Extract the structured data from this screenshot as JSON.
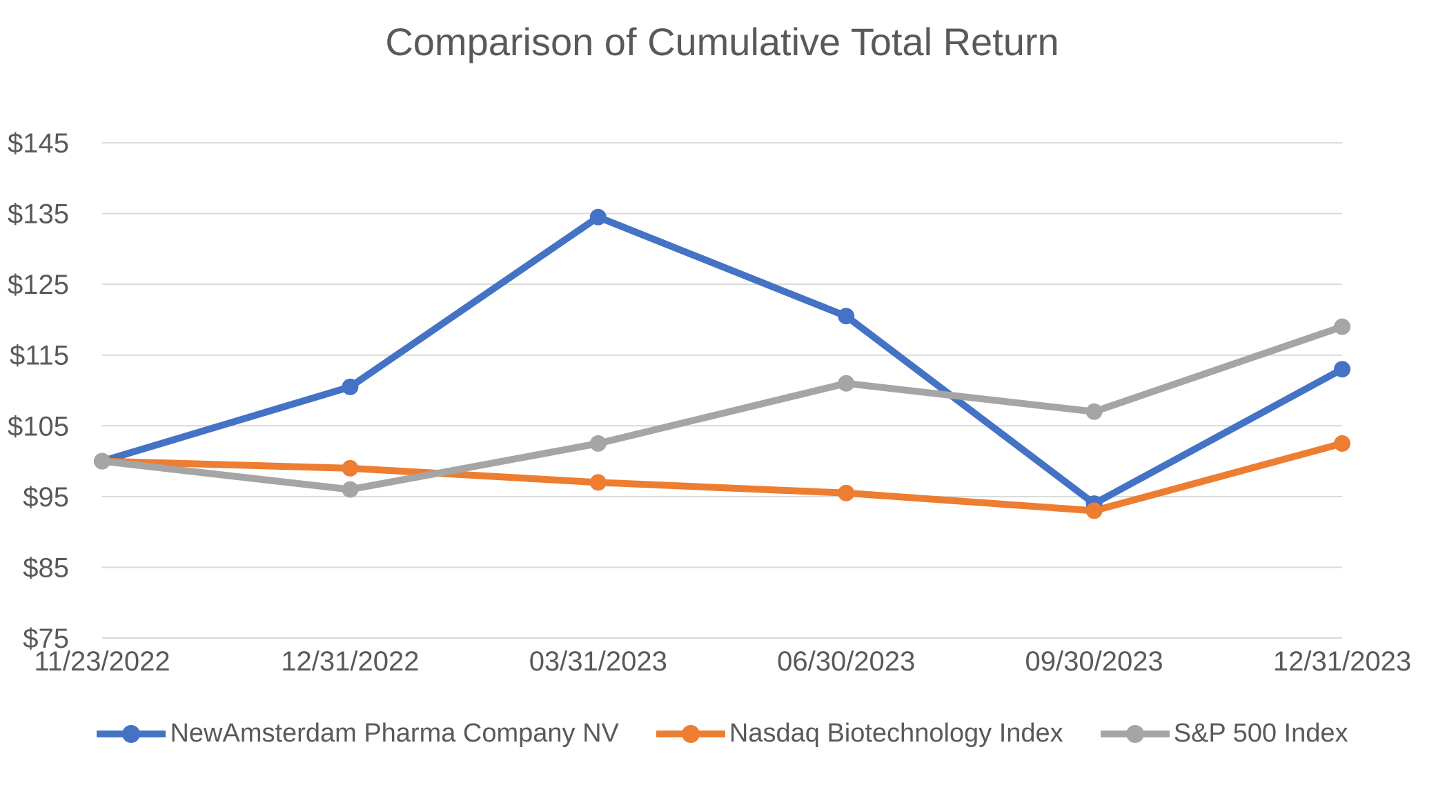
{
  "page": {
    "background": "#ffffff"
  },
  "chart_data": {
    "type": "line",
    "title": "Comparison of Cumulative Total Return",
    "title_color": "#595959",
    "text_color": "#595959",
    "grid_color": "#d9d9d9",
    "grid": true,
    "legend_position": "bottom",
    "marker": "circle",
    "categories": [
      "11/23/2022",
      "12/31/2022",
      "03/31/2023",
      "06/30/2023",
      "09/30/2023",
      "12/31/2023"
    ],
    "series": [
      {
        "name": "NewAmsterdam Pharma Company NV",
        "color": "#4472C4",
        "values": [
          100,
          110.5,
          134.5,
          120.5,
          94,
          113
        ]
      },
      {
        "name": "Nasdaq Biotechnology Index",
        "color": "#ED7D31",
        "values": [
          100,
          99,
          97,
          95.5,
          93,
          102.5
        ]
      },
      {
        "name": "S&P 500 Index",
        "color": "#A5A5A5",
        "values": [
          100,
          96,
          102.5,
          111,
          107,
          119
        ]
      }
    ],
    "ylim": [
      75,
      145
    ],
    "yticks": [
      {
        "value": 145,
        "label": "$145"
      },
      {
        "value": 135,
        "label": "$135"
      },
      {
        "value": 125,
        "label": "$125"
      },
      {
        "value": 115,
        "label": "$115"
      },
      {
        "value": 105,
        "label": "$105"
      },
      {
        "value": 95,
        "label": "$95"
      },
      {
        "value": 85,
        "label": "$85"
      },
      {
        "value": 75,
        "label": "$75"
      }
    ],
    "xlabel": "",
    "ylabel": ""
  }
}
